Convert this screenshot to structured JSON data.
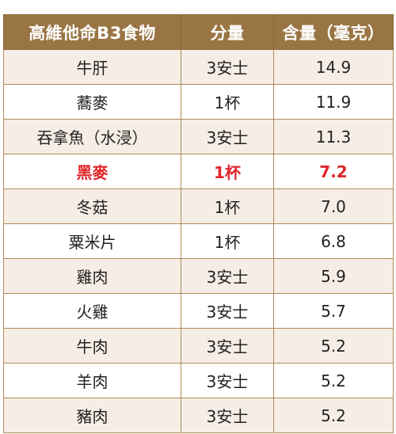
{
  "table": {
    "headers": [
      "高維他命B3食物",
      "分量",
      "含量（毫克）"
    ],
    "rows": [
      {
        "food": "牛肝",
        "portion": "3安士",
        "amount": "14.9"
      },
      {
        "food": "蕎麥",
        "portion": "1杯",
        "amount": "11.9"
      },
      {
        "food": "吞拿魚（水浸）",
        "portion": "3安士",
        "amount": "11.3"
      },
      {
        "food": "黑麥",
        "portion": "1杯",
        "amount": "7.2"
      },
      {
        "food": "冬菇",
        "portion": "1杯",
        "amount": "7.0"
      },
      {
        "food": "粟米片",
        "portion": "1杯",
        "amount": "6.8"
      },
      {
        "food": "雞肉",
        "portion": "3安士",
        "amount": "5.9"
      },
      {
        "food": "火雞",
        "portion": "3安士",
        "amount": "5.7"
      },
      {
        "food": "牛肉",
        "portion": "3安士",
        "amount": "5.2"
      },
      {
        "food": "羊肉",
        "portion": "3安士",
        "amount": "5.2"
      },
      {
        "food": "豬肉",
        "portion": "3安士",
        "amount": "5.2"
      }
    ],
    "highlight_row": 3,
    "colors": {
      "header_bg": "#9a7544",
      "header_text": "#ffffff",
      "row_odd": "#f6eee6",
      "row_even": "#ffffff",
      "highlight_text": "#e0262a",
      "border": "#b08a5a"
    }
  }
}
